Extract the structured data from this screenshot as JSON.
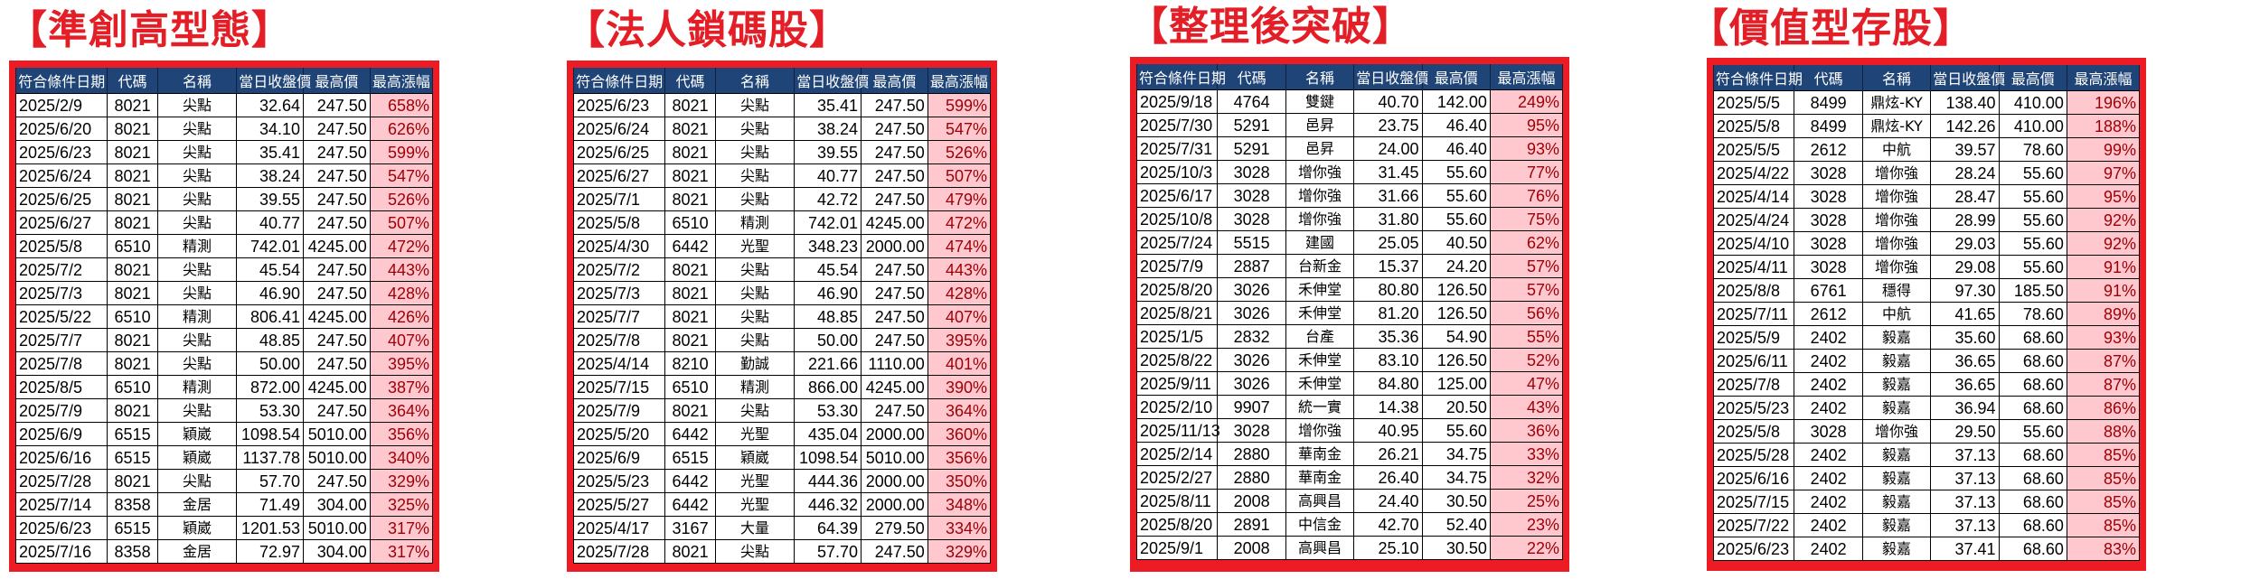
{
  "columns": [
    "符合條件日期",
    "代碼",
    "名稱",
    "當日收盤價",
    "最高價",
    "最高漲幅"
  ],
  "colors": {
    "title_red": "#e41e26",
    "frame_red": "#ed1c24",
    "header_navy": "#1f4477",
    "pct_fill": "#ffc7ce",
    "pct_text": "#9c0006"
  },
  "panels": [
    {
      "title": "【準創高型態】",
      "rows": [
        [
          "2025/2/9",
          "8021",
          "尖點",
          "32.64",
          "247.50",
          "658%"
        ],
        [
          "2025/6/20",
          "8021",
          "尖點",
          "34.10",
          "247.50",
          "626%"
        ],
        [
          "2025/6/23",
          "8021",
          "尖點",
          "35.41",
          "247.50",
          "599%"
        ],
        [
          "2025/6/24",
          "8021",
          "尖點",
          "38.24",
          "247.50",
          "547%"
        ],
        [
          "2025/6/25",
          "8021",
          "尖點",
          "39.55",
          "247.50",
          "526%"
        ],
        [
          "2025/6/27",
          "8021",
          "尖點",
          "40.77",
          "247.50",
          "507%"
        ],
        [
          "2025/5/8",
          "6510",
          "精測",
          "742.01",
          "4245.00",
          "472%"
        ],
        [
          "2025/7/2",
          "8021",
          "尖點",
          "45.54",
          "247.50",
          "443%"
        ],
        [
          "2025/7/3",
          "8021",
          "尖點",
          "46.90",
          "247.50",
          "428%"
        ],
        [
          "2025/5/22",
          "6510",
          "精測",
          "806.41",
          "4245.00",
          "426%"
        ],
        [
          "2025/7/7",
          "8021",
          "尖點",
          "48.85",
          "247.50",
          "407%"
        ],
        [
          "2025/7/8",
          "8021",
          "尖點",
          "50.00",
          "247.50",
          "395%"
        ],
        [
          "2025/8/5",
          "6510",
          "精測",
          "872.00",
          "4245.00",
          "387%"
        ],
        [
          "2025/7/9",
          "8021",
          "尖點",
          "53.30",
          "247.50",
          "364%"
        ],
        [
          "2025/6/9",
          "6515",
          "穎崴",
          "1098.54",
          "5010.00",
          "356%"
        ],
        [
          "2025/6/16",
          "6515",
          "穎崴",
          "1137.78",
          "5010.00",
          "340%"
        ],
        [
          "2025/7/28",
          "8021",
          "尖點",
          "57.70",
          "247.50",
          "329%"
        ],
        [
          "2025/7/14",
          "8358",
          "金居",
          "71.49",
          "304.00",
          "325%"
        ],
        [
          "2025/6/23",
          "6515",
          "穎崴",
          "1201.53",
          "5010.00",
          "317%"
        ],
        [
          "2025/7/16",
          "8358",
          "金居",
          "72.97",
          "304.00",
          "317%"
        ]
      ]
    },
    {
      "title": "【法人鎖碼股】",
      "rows": [
        [
          "2025/6/23",
          "8021",
          "尖點",
          "35.41",
          "247.50",
          "599%"
        ],
        [
          "2025/6/24",
          "8021",
          "尖點",
          "38.24",
          "247.50",
          "547%"
        ],
        [
          "2025/6/25",
          "8021",
          "尖點",
          "39.55",
          "247.50",
          "526%"
        ],
        [
          "2025/6/27",
          "8021",
          "尖點",
          "40.77",
          "247.50",
          "507%"
        ],
        [
          "2025/7/1",
          "8021",
          "尖點",
          "42.72",
          "247.50",
          "479%"
        ],
        [
          "2025/5/8",
          "6510",
          "精測",
          "742.01",
          "4245.00",
          "472%"
        ],
        [
          "2025/4/30",
          "6442",
          "光聖",
          "348.23",
          "2000.00",
          "474%"
        ],
        [
          "2025/7/2",
          "8021",
          "尖點",
          "45.54",
          "247.50",
          "443%"
        ],
        [
          "2025/7/3",
          "8021",
          "尖點",
          "46.90",
          "247.50",
          "428%"
        ],
        [
          "2025/7/7",
          "8021",
          "尖點",
          "48.85",
          "247.50",
          "407%"
        ],
        [
          "2025/7/8",
          "8021",
          "尖點",
          "50.00",
          "247.50",
          "395%"
        ],
        [
          "2025/4/14",
          "8210",
          "勤誠",
          "221.66",
          "1110.00",
          "401%"
        ],
        [
          "2025/7/15",
          "6510",
          "精測",
          "866.00",
          "4245.00",
          "390%"
        ],
        [
          "2025/7/9",
          "8021",
          "尖點",
          "53.30",
          "247.50",
          "364%"
        ],
        [
          "2025/5/20",
          "6442",
          "光聖",
          "435.04",
          "2000.00",
          "360%"
        ],
        [
          "2025/6/9",
          "6515",
          "穎崴",
          "1098.54",
          "5010.00",
          "356%"
        ],
        [
          "2025/5/23",
          "6442",
          "光聖",
          "444.36",
          "2000.00",
          "350%"
        ],
        [
          "2025/5/27",
          "6442",
          "光聖",
          "446.32",
          "2000.00",
          "348%"
        ],
        [
          "2025/4/17",
          "3167",
          "大量",
          "64.39",
          "279.50",
          "334%"
        ],
        [
          "2025/7/28",
          "8021",
          "尖點",
          "57.70",
          "247.50",
          "329%"
        ]
      ]
    },
    {
      "title": "【整理後突破】",
      "rows": [
        [
          "2025/9/18",
          "4764",
          "雙鍵",
          "40.70",
          "142.00",
          "249%"
        ],
        [
          "2025/7/30",
          "5291",
          "邑昇",
          "23.75",
          "46.40",
          "95%"
        ],
        [
          "2025/7/31",
          "5291",
          "邑昇",
          "24.00",
          "46.40",
          "93%"
        ],
        [
          "2025/10/3",
          "3028",
          "增你強",
          "31.45",
          "55.60",
          "77%"
        ],
        [
          "2025/6/17",
          "3028",
          "增你強",
          "31.66",
          "55.60",
          "76%"
        ],
        [
          "2025/10/8",
          "3028",
          "增你強",
          "31.80",
          "55.60",
          "75%"
        ],
        [
          "2025/7/24",
          "5515",
          "建國",
          "25.05",
          "40.50",
          "62%"
        ],
        [
          "2025/7/9",
          "2887",
          "台新金",
          "15.37",
          "24.20",
          "57%"
        ],
        [
          "2025/8/20",
          "3026",
          "禾伸堂",
          "80.80",
          "126.50",
          "57%"
        ],
        [
          "2025/8/21",
          "3026",
          "禾伸堂",
          "81.20",
          "126.50",
          "56%"
        ],
        [
          "2025/1/5",
          "2832",
          "台產",
          "35.36",
          "54.90",
          "55%"
        ],
        [
          "2025/8/22",
          "3026",
          "禾伸堂",
          "83.10",
          "126.50",
          "52%"
        ],
        [
          "2025/9/11",
          "3026",
          "禾伸堂",
          "84.80",
          "125.00",
          "47%"
        ],
        [
          "2025/2/10",
          "9907",
          "統一實",
          "14.38",
          "20.50",
          "43%"
        ],
        [
          "2025/11/13",
          "3028",
          "增你強",
          "40.95",
          "55.60",
          "36%"
        ],
        [
          "2025/2/14",
          "2880",
          "華南金",
          "26.21",
          "34.75",
          "33%"
        ],
        [
          "2025/2/27",
          "2880",
          "華南金",
          "26.40",
          "34.75",
          "32%"
        ],
        [
          "2025/8/11",
          "2008",
          "高興昌",
          "24.40",
          "30.50",
          "25%"
        ],
        [
          "2025/8/20",
          "2891",
          "中信金",
          "42.70",
          "52.40",
          "23%"
        ],
        [
          "2025/9/1",
          "2008",
          "高興昌",
          "25.10",
          "30.50",
          "22%"
        ]
      ]
    },
    {
      "title": "【價值型存股】",
      "rows": [
        [
          "2025/5/5",
          "8499",
          "鼎炫-KY",
          "138.40",
          "410.00",
          "196%"
        ],
        [
          "2025/5/8",
          "8499",
          "鼎炫-KY",
          "142.26",
          "410.00",
          "188%"
        ],
        [
          "2025/5/5",
          "2612",
          "中航",
          "39.57",
          "78.60",
          "99%"
        ],
        [
          "2025/4/22",
          "3028",
          "增你強",
          "28.24",
          "55.60",
          "97%"
        ],
        [
          "2025/4/14",
          "3028",
          "增你強",
          "28.47",
          "55.60",
          "95%"
        ],
        [
          "2025/4/24",
          "3028",
          "增你強",
          "28.99",
          "55.60",
          "92%"
        ],
        [
          "2025/4/10",
          "3028",
          "增你強",
          "29.03",
          "55.60",
          "92%"
        ],
        [
          "2025/4/11",
          "3028",
          "增你強",
          "29.08",
          "55.60",
          "91%"
        ],
        [
          "2025/8/8",
          "6761",
          "穩得",
          "97.30",
          "185.50",
          "91%"
        ],
        [
          "2025/7/11",
          "2612",
          "中航",
          "41.65",
          "78.60",
          "89%"
        ],
        [
          "2025/5/9",
          "2402",
          "毅嘉",
          "35.60",
          "68.60",
          "93%"
        ],
        [
          "2025/6/11",
          "2402",
          "毅嘉",
          "36.65",
          "68.60",
          "87%"
        ],
        [
          "2025/7/8",
          "2402",
          "毅嘉",
          "36.65",
          "68.60",
          "87%"
        ],
        [
          "2025/5/23",
          "2402",
          "毅嘉",
          "36.94",
          "68.60",
          "86%"
        ],
        [
          "2025/5/8",
          "3028",
          "增你強",
          "29.50",
          "55.60",
          "88%"
        ],
        [
          "2025/5/28",
          "2402",
          "毅嘉",
          "37.13",
          "68.60",
          "85%"
        ],
        [
          "2025/6/16",
          "2402",
          "毅嘉",
          "37.13",
          "68.60",
          "85%"
        ],
        [
          "2025/7/15",
          "2402",
          "毅嘉",
          "37.13",
          "68.60",
          "85%"
        ],
        [
          "2025/7/22",
          "2402",
          "毅嘉",
          "37.13",
          "68.60",
          "85%"
        ],
        [
          "2025/6/23",
          "2402",
          "毅嘉",
          "37.41",
          "68.60",
          "83%"
        ]
      ]
    }
  ]
}
